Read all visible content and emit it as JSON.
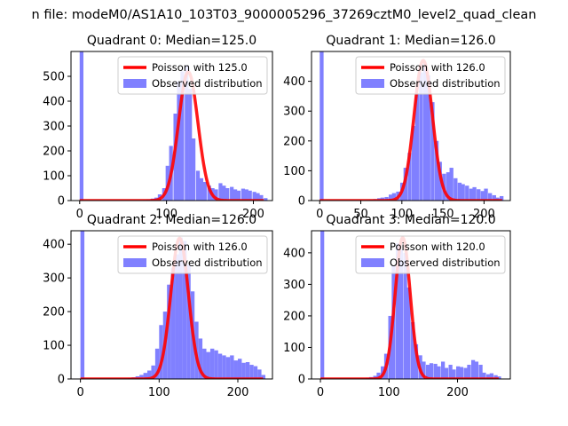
{
  "suptitle": "n file: modeM0/AS1A10_103T03_9000005296_37269cztM0_level2_quad_clean",
  "colors": {
    "hist": "#8080ff",
    "poisson": "#ff0000"
  },
  "chart_data": [
    {
      "type": "bar",
      "title": "Quadrant 0: Median=125.0",
      "xlim": [
        -10,
        222
      ],
      "ylim": [
        0,
        600
      ],
      "xticks": [
        0,
        100,
        200
      ],
      "yticks": [
        0,
        100,
        200,
        300,
        400,
        500
      ],
      "bin_width": 4.3,
      "series": [
        {
          "name": "Observed distribution",
          "x": [
            0,
            68,
            73,
            77,
            82,
            86,
            90,
            95,
            99,
            103,
            108,
            112,
            116,
            121,
            125,
            129,
            134,
            138,
            142,
            147,
            151,
            155,
            160,
            164,
            168,
            173,
            177,
            181,
            186,
            190,
            194,
            199,
            203,
            207,
            212
          ],
          "values": [
            600,
            2,
            3,
            5,
            8,
            12,
            25,
            50,
            140,
            220,
            350,
            480,
            520,
            545,
            450,
            250,
            120,
            90,
            75,
            60,
            50,
            45,
            70,
            60,
            50,
            55,
            45,
            40,
            48,
            45,
            40,
            35,
            30,
            22,
            10
          ]
        },
        {
          "name": "Poisson with 125.0",
          "mean": 125.0,
          "amplitude": 518,
          "x_range": [
            0,
            212
          ]
        }
      ],
      "legend": {
        "location": "top-right",
        "entries": [
          "Poisson with 125.0",
          "Observed distribution"
        ]
      }
    },
    {
      "type": "bar",
      "title": "Quadrant 1: Median=126.0",
      "xlim": [
        -10,
        232
      ],
      "ylim": [
        0,
        500
      ],
      "xticks": [
        0,
        50,
        100,
        150,
        200
      ],
      "yticks": [
        0,
        100,
        200,
        300,
        400
      ],
      "bin_width": 4.7,
      "series": [
        {
          "name": "Observed distribution",
          "x": [
            0,
            55,
            60,
            65,
            70,
            74,
            79,
            84,
            88,
            93,
            98,
            102,
            107,
            112,
            116,
            121,
            126,
            130,
            135,
            140,
            144,
            149,
            154,
            158,
            163,
            168,
            172,
            177,
            182,
            186,
            191,
            196,
            200,
            205,
            210,
            214,
            219
          ],
          "values": [
            500,
            2,
            3,
            5,
            8,
            10,
            12,
            20,
            25,
            30,
            60,
            110,
            160,
            250,
            360,
            430,
            460,
            420,
            330,
            200,
            130,
            90,
            95,
            110,
            75,
            60,
            55,
            50,
            40,
            45,
            38,
            32,
            40,
            25,
            18,
            10,
            15
          ]
        },
        {
          "name": "Poisson with 126.0",
          "mean": 126.0,
          "amplitude": 470,
          "x_range": [
            0,
            222
          ]
        }
      ],
      "legend": {
        "location": "top-right",
        "entries": [
          "Poisson with 126.0",
          "Observed distribution"
        ]
      }
    },
    {
      "type": "bar",
      "title": "Quadrant 2: Median=126.0",
      "xlim": [
        -12,
        244
      ],
      "ylim": [
        0,
        440
      ],
      "xticks": [
        0,
        100,
        200
      ],
      "yticks": [
        0,
        100,
        200,
        300,
        400
      ],
      "bin_width": 5.0,
      "series": [
        {
          "name": "Observed distribution",
          "x": [
            0,
            55,
            60,
            65,
            70,
            75,
            80,
            85,
            90,
            95,
            100,
            105,
            110,
            115,
            120,
            125,
            130,
            135,
            140,
            145,
            150,
            155,
            160,
            165,
            170,
            175,
            180,
            185,
            190,
            195,
            200,
            205,
            210,
            215,
            220,
            225,
            230
          ],
          "values": [
            440,
            2,
            3,
            5,
            8,
            12,
            18,
            25,
            40,
            90,
            160,
            200,
            280,
            330,
            370,
            420,
            410,
            340,
            260,
            170,
            120,
            90,
            80,
            90,
            85,
            75,
            70,
            65,
            70,
            55,
            60,
            48,
            50,
            42,
            38,
            28,
            12
          ]
        },
        {
          "name": "Poisson with 126.0",
          "mean": 126.0,
          "amplitude": 418,
          "x_range": [
            0,
            232
          ]
        }
      ],
      "legend": {
        "location": "top-right",
        "entries": [
          "Poisson with 126.0",
          "Observed distribution"
        ]
      }
    },
    {
      "type": "bar",
      "title": "Quadrant 3: Median=120.0",
      "xlim": [
        -13,
        277
      ],
      "ylim": [
        0,
        470
      ],
      "xticks": [
        0,
        100,
        200
      ],
      "yticks": [
        0,
        100,
        200,
        300,
        400
      ],
      "bin_width": 5.5,
      "series": [
        {
          "name": "Observed distribution",
          "x": [
            0,
            60,
            66,
            71,
            77,
            82,
            88,
            93,
            99,
            104,
            110,
            115,
            121,
            126,
            132,
            137,
            143,
            148,
            154,
            159,
            165,
            170,
            176,
            181,
            187,
            192,
            198,
            203,
            209,
            214,
            220,
            225,
            231,
            236,
            242,
            247,
            253,
            258
          ],
          "values": [
            470,
            2,
            4,
            6,
            10,
            20,
            40,
            80,
            200,
            360,
            430,
            410,
            400,
            290,
            180,
            110,
            75,
            55,
            45,
            50,
            48,
            40,
            55,
            35,
            45,
            30,
            40,
            38,
            35,
            45,
            60,
            55,
            45,
            20,
            15,
            18,
            12,
            8
          ]
        },
        {
          "name": "Poisson with 120.0",
          "mean": 120.0,
          "amplitude": 448,
          "x_range": [
            0,
            260
          ]
        }
      ],
      "legend": {
        "location": "top-right",
        "entries": [
          "Poisson with 120.0",
          "Observed distribution"
        ]
      }
    }
  ]
}
